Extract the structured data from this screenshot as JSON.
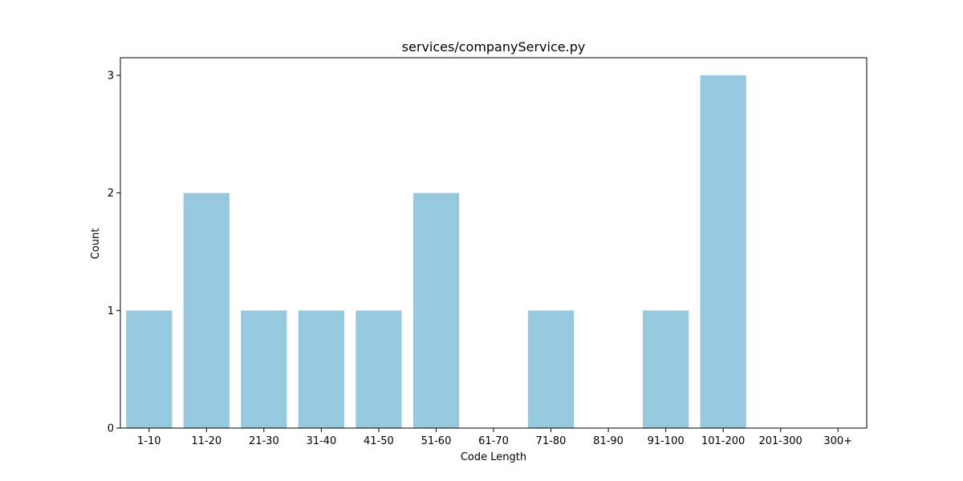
{
  "chart_data": {
    "type": "bar",
    "title": "services/companyService.py",
    "xlabel": "Code Length",
    "ylabel": "Count",
    "categories": [
      "1-10",
      "11-20",
      "21-30",
      "31-40",
      "41-50",
      "51-60",
      "61-70",
      "71-80",
      "81-90",
      "91-100",
      "101-200",
      "201-300",
      "300+"
    ],
    "values": [
      1,
      2,
      1,
      1,
      1,
      2,
      0,
      1,
      0,
      1,
      3,
      0,
      0
    ],
    "ylim": [
      0,
      3.15
    ],
    "yticks": [
      0,
      1,
      2,
      3
    ],
    "grid": false,
    "bar_color": "#96c9de",
    "axis_color": "#000000"
  }
}
